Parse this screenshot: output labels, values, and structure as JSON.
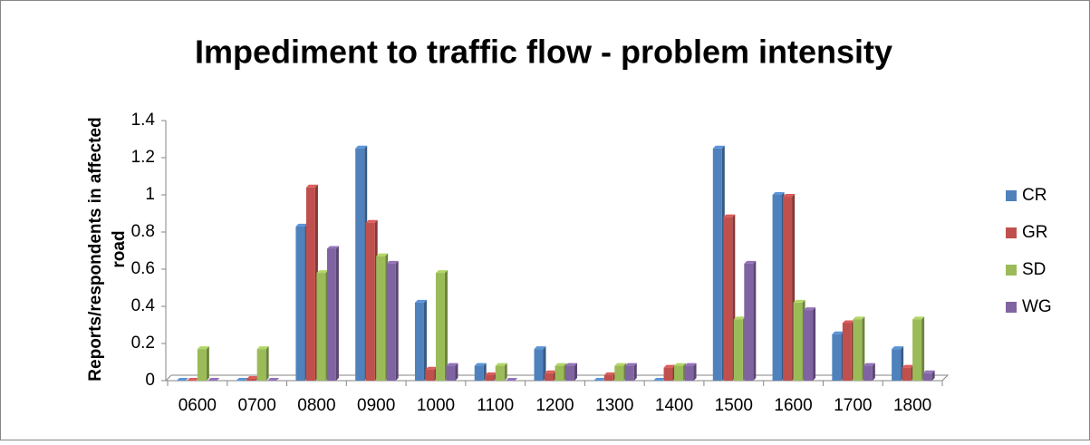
{
  "chart_data": {
    "type": "bar",
    "title": "Impediment to traffic flow - problem intensity",
    "ylabel": [
      "Reports/respondents in affected",
      "road"
    ],
    "categories": [
      "0600",
      "0700",
      "0800",
      "0900",
      "1000",
      "1100",
      "1200",
      "1300",
      "1400",
      "1500",
      "1600",
      "1700",
      "1800"
    ],
    "series": [
      {
        "name": "CR",
        "color": "#4f81bd",
        "values": [
          0,
          0,
          0.83,
          1.25,
          0.42,
          0.08,
          0.17,
          0,
          0,
          1.25,
          1.0,
          0.25,
          0.17
        ]
      },
      {
        "name": "GR",
        "color": "#c0504d",
        "values": [
          0,
          0.01,
          1.04,
          0.85,
          0.06,
          0.03,
          0.04,
          0.03,
          0.07,
          0.88,
          0.99,
          0.31,
          0.07
        ]
      },
      {
        "name": "SD",
        "color": "#9bbb59",
        "values": [
          0.17,
          0.17,
          0.58,
          0.67,
          0.58,
          0.08,
          0.08,
          0.08,
          0.08,
          0.33,
          0.42,
          0.33,
          0.33
        ]
      },
      {
        "name": "WG",
        "color": "#8064a2",
        "values": [
          0,
          0,
          0.71,
          0.63,
          0.08,
          0,
          0.08,
          0.08,
          0.08,
          0.63,
          0.38,
          0.08,
          0.04
        ]
      }
    ],
    "ylim": [
      0,
      1.4
    ],
    "yticks": [
      0,
      0.2,
      0.4,
      0.6,
      0.8,
      1,
      1.2,
      1.4
    ],
    "legend": "right"
  }
}
